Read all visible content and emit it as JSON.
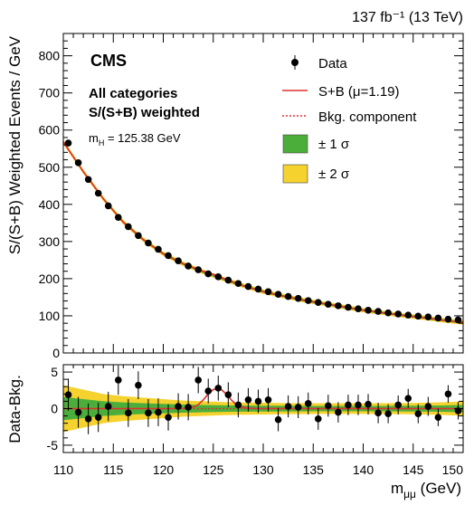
{
  "header": {
    "lumi_label": "137 fb⁻¹ (13 TeV)"
  },
  "annotations": {
    "experiment": "CMS",
    "category_line1": "All categories",
    "category_line2": "S/(S+B) weighted",
    "mass_label": "m",
    "mass_subscript": "H",
    "mass_value": " = 125.38 GeV"
  },
  "legend": {
    "data": "Data",
    "sb": "S+B (μ=1.19)",
    "bkg": "Bkg. component",
    "band1": "± 1 σ",
    "band2": "± 2 σ"
  },
  "colors": {
    "sb_line": "#e03030",
    "bkg_line": "#e03030",
    "band1": "#4cae3a",
    "band2": "#f5d22e",
    "data": "#000000"
  },
  "chart_data": [
    {
      "type": "scatter",
      "panel": "main",
      "ylabel": "S/(S+B) Weighted Events / GeV",
      "xlim": [
        110,
        150
      ],
      "ylim": [
        0,
        860
      ],
      "yticks": [
        0,
        100,
        200,
        300,
        400,
        500,
        600,
        700,
        800
      ],
      "grid": false,
      "legend_position": "top-right",
      "series": [
        {
          "name": "Data",
          "x": [
            110.5,
            111.5,
            112.5,
            113.5,
            114.5,
            115.5,
            116.5,
            117.5,
            118.5,
            119.5,
            120.5,
            121.5,
            122.5,
            123.5,
            124.5,
            125.5,
            126.5,
            127.5,
            128.5,
            129.5,
            130.5,
            131.5,
            132.5,
            133.5,
            134.5,
            135.5,
            136.5,
            137.5,
            138.5,
            139.5,
            140.5,
            141.5,
            142.5,
            143.5,
            144.5,
            145.5,
            146.5,
            147.5,
            148.5,
            149.5
          ],
          "y": [
            565,
            512,
            467,
            430,
            396,
            365,
            340,
            316,
            296,
            279,
            262,
            248,
            234,
            224,
            213,
            205,
            196,
            187,
            179,
            172,
            165,
            158,
            152,
            147,
            141,
            136,
            131,
            127,
            123,
            119,
            115,
            112,
            108,
            105,
            102,
            99,
            97,
            94,
            91,
            89
          ]
        },
        {
          "name": "S+B (μ=1.19)",
          "x": [
            110,
            112,
            114,
            116,
            118,
            120,
            122,
            124,
            125,
            126,
            128,
            130,
            132,
            134,
            136,
            138,
            140,
            142,
            144,
            146,
            148,
            150
          ],
          "y": [
            568,
            488,
            415,
            352,
            305,
            267,
            240,
            220,
            212,
            201,
            181,
            165,
            153,
            142,
            133,
            124,
            115,
            108,
            101,
            95,
            88,
            82
          ]
        },
        {
          "name": "Bkg. component",
          "x": [
            110,
            112,
            114,
            116,
            118,
            120,
            122,
            124,
            126,
            128,
            130,
            132,
            134,
            136,
            138,
            140,
            142,
            144,
            146,
            148,
            150
          ],
          "y": [
            568,
            488,
            415,
            352,
            305,
            267,
            240,
            218,
            199,
            181,
            165,
            153,
            142,
            133,
            124,
            115,
            108,
            101,
            95,
            88,
            82
          ]
        }
      ]
    },
    {
      "type": "scatter",
      "panel": "ratio",
      "ylabel": "Data-Bkg.",
      "xlabel": "m",
      "xlabel_sub": "μμ",
      "xlabel_unit": " (GeV)",
      "xlim": [
        110,
        150
      ],
      "ylim": [
        -6,
        6
      ],
      "xticks": [
        110,
        115,
        120,
        125,
        130,
        135,
        140,
        145,
        150
      ],
      "yticks": [
        -5,
        0,
        5
      ],
      "series": [
        {
          "name": "Data",
          "x": [
            110.5,
            111.5,
            112.5,
            113.5,
            114.5,
            115.5,
            116.5,
            117.5,
            118.5,
            119.5,
            120.5,
            121.5,
            122.5,
            123.5,
            124.5,
            125.5,
            126.5,
            127.5,
            128.5,
            129.5,
            130.5,
            131.5,
            132.5,
            133.5,
            134.5,
            135.5,
            136.5,
            137.5,
            138.5,
            139.5,
            140.5,
            141.5,
            142.5,
            143.5,
            144.5,
            145.5,
            146.5,
            147.5,
            148.5,
            149.5
          ],
          "y": [
            1.9,
            -0.5,
            -1.4,
            -1.2,
            0.3,
            3.9,
            -0.6,
            3.2,
            -0.6,
            -0.5,
            -1.2,
            0.3,
            0.2,
            3.9,
            2.4,
            2.8,
            1.9,
            0.5,
            1.2,
            1.0,
            1.2,
            -1.5,
            0.3,
            0.2,
            0.7,
            -1.4,
            0.4,
            -0.5,
            0.5,
            0.5,
            0.6,
            -0.6,
            -0.7,
            0.5,
            1.4,
            -0.7,
            0.3,
            -1.2,
            2.0,
            -0.3
          ],
          "err": [
            2.2,
            2.1,
            2.1,
            2.0,
            2.0,
            2.0,
            1.9,
            1.9,
            1.9,
            1.9,
            1.8,
            1.8,
            1.8,
            1.8,
            1.7,
            1.7,
            1.7,
            1.7,
            1.6,
            1.6,
            1.6,
            1.6,
            1.5,
            1.5,
            1.5,
            1.5,
            1.5,
            1.4,
            1.4,
            1.4,
            1.4,
            1.4,
            1.3,
            1.3,
            1.3,
            1.3,
            1.3,
            1.2,
            1.2,
            1.2
          ]
        },
        {
          "name": "S+B (μ=1.19)",
          "x": [
            110,
            121,
            122,
            123,
            123.5,
            124,
            124.5,
            125,
            125.38,
            125.8,
            126.3,
            126.8,
            127.3,
            128,
            129,
            150
          ],
          "y": [
            0,
            0,
            0.02,
            0.2,
            0.55,
            1.2,
            2.0,
            2.6,
            2.75,
            2.6,
            2.0,
            1.2,
            0.55,
            0.15,
            0.02,
            0
          ]
        }
      ],
      "bands": {
        "x": [
          110,
          112,
          114,
          116,
          118,
          120,
          122,
          124,
          126,
          128,
          130,
          132,
          134,
          136,
          138,
          140,
          142,
          144,
          146,
          148,
          150
        ],
        "sigma1": [
          1.6,
          1.3,
          1.0,
          0.85,
          0.75,
          0.65,
          0.55,
          0.5,
          0.45,
          0.42,
          0.4,
          0.38,
          0.37,
          0.36,
          0.36,
          0.36,
          0.37,
          0.38,
          0.4,
          0.43,
          0.5
        ],
        "sigma2": [
          3.2,
          2.6,
          2.0,
          1.7,
          1.5,
          1.3,
          1.1,
          1.0,
          0.9,
          0.84,
          0.8,
          0.76,
          0.74,
          0.72,
          0.72,
          0.72,
          0.74,
          0.76,
          0.8,
          0.86,
          1.0
        ]
      }
    }
  ]
}
